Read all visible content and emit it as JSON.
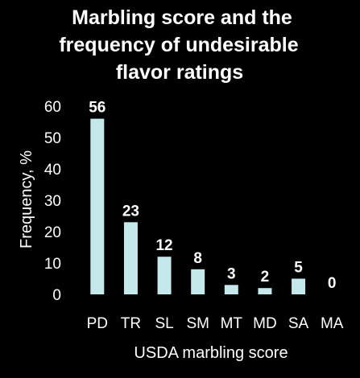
{
  "chart_data": {
    "type": "bar",
    "title_lines": [
      "Marbling score and the",
      "frequency of undesirable",
      "flavor ratings"
    ],
    "xlabel": "USDA marbling score",
    "ylabel": "Frequency, %",
    "categories": [
      "PD",
      "TR",
      "SL",
      "SM",
      "MT",
      "MD",
      "SA",
      "MA"
    ],
    "values": [
      56,
      23,
      12,
      8,
      3,
      2,
      5,
      0
    ],
    "data_labels": [
      "56",
      "23",
      "12",
      "8",
      "3",
      "2",
      "5",
      "0"
    ],
    "ylim": [
      0,
      60
    ],
    "yticks": [
      0,
      10,
      20,
      30,
      40,
      50,
      60
    ],
    "grid": false,
    "bar_color": "#c5e8ea",
    "background_color": "#000000",
    "text_color": "#ffffff"
  }
}
